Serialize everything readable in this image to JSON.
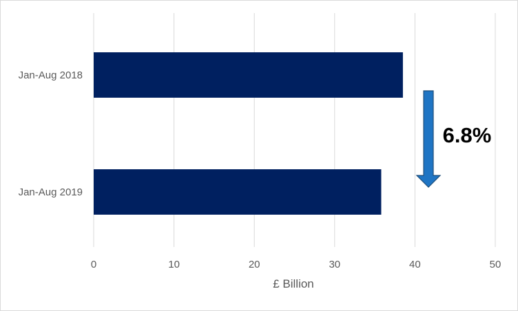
{
  "chart_data": {
    "type": "bar",
    "orientation": "horizontal",
    "categories": [
      "Jan-Aug 2018",
      "Jan-Aug 2019"
    ],
    "values": [
      38.5,
      35.8
    ],
    "xlabel": "£ Billion",
    "ylabel": "",
    "xlim": [
      0,
      50
    ],
    "xticks": [
      "0",
      "10",
      "20",
      "30",
      "40",
      "50"
    ],
    "grid": true,
    "legend": "none",
    "annotation": {
      "text": "6.8%",
      "arrow": "down"
    },
    "colors": {
      "bar": "#002060",
      "arrow_fill": "#1f75c4",
      "arrow_stroke": "#1f4e79",
      "grid": "#d9d9d9"
    }
  }
}
